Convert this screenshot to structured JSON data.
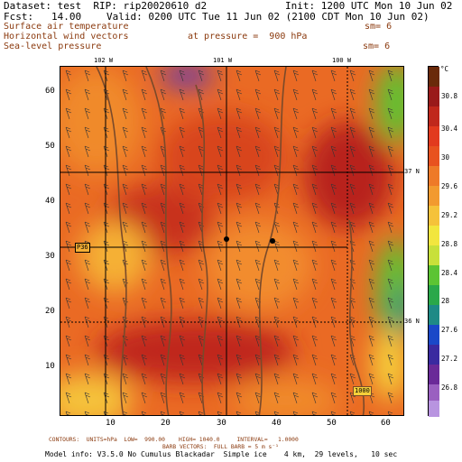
{
  "header": {
    "dataset": "Dataset: test  RIP: rip20020610 d2",
    "init": "Init: 1200 UTC Mon 10 Jun 02",
    "fcst": "Fcst:   14.00",
    "valid": "Valid: 0200 UTC Tue 11 Jun 02 (2100 CDT Mon 10 Jun 02)"
  },
  "fields": {
    "line1": "Surface air temperature",
    "line1_sm": "sm= 6",
    "line2": "Horizontal wind vectors",
    "line2_pressure": "at pressure =  900 hPa",
    "line3": "Sea-level pressure",
    "line3_sm": "sm= 6"
  },
  "map": {
    "lon_labels": [
      "102 W",
      "101 W",
      "100 W"
    ],
    "lat_labels": [
      "37 N",
      "36 N"
    ],
    "x_ticks": [
      "10",
      "20",
      "30",
      "40",
      "50",
      "60"
    ],
    "y_ticks": [
      "10",
      "20",
      "30",
      "40",
      "50",
      "60"
    ],
    "station_label": "P36",
    "isobar_label": "1000",
    "colors": {
      "hot": "#c0281c",
      "warm": "#e8521f",
      "orange": "#f08a2c",
      "yellow": "#f5d03a",
      "green": "#5cc433",
      "cool": "#1e8a86"
    }
  },
  "colorbar": {
    "unit": "°C",
    "labels": [
      "30.8",
      "30.4",
      "30",
      "29.6",
      "29.2",
      "28.8",
      "28.4",
      "28",
      "27.6",
      "27.2",
      "26.8"
    ]
  },
  "footer": {
    "contours": "CONTOURS:  UNITS=hPa  LOW=  990.00    HIGH= 1040.0     INTERVAL=   1.0000",
    "barbs": "BARB VECTORS:  FULL BARB = 5 m s⁻¹",
    "model": "Model info: V3.5.0 No Cumulus Blackadar  Simple ice    4 km,  29 levels,   10 sec"
  }
}
